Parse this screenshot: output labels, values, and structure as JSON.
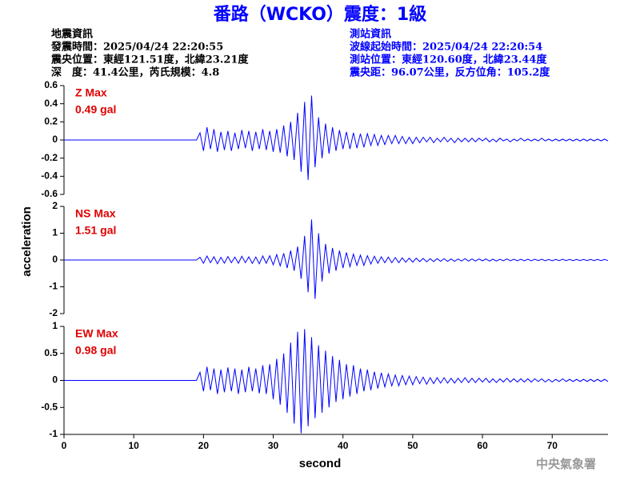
{
  "header": {
    "title": "番路（WCKO）震度：1級",
    "left": [
      "地震資訊",
      "發震時間：2025/04/24 22:20:55",
      "震央位置：東經121.51度，北緯23.21度",
      "深　度：41.4公里，芮氏規模：4.8"
    ],
    "right": [
      "測站資訊",
      "波線起始時間：2025/04/24 22:20:54",
      "測站位置：東經120.60度，北緯23.44度",
      "震央距：96.07公里，反方位角：105.2度"
    ]
  },
  "ylabel": "acceleration",
  "xlabel": "second",
  "footer": "中央氣象署",
  "chart_data": [
    {
      "type": "line",
      "annotation": "Z Max",
      "max_label": "0.49 gal",
      "color": "#0000ff",
      "xlim": [
        0,
        78
      ],
      "ylim": [
        -0.6,
        0.6
      ],
      "yticks": [
        -0.6,
        -0.4,
        -0.2,
        0,
        0.2,
        0.4,
        0.6
      ],
      "x": [
        0,
        19,
        19.5,
        20,
        20.5,
        21,
        21.5,
        22,
        22.5,
        23,
        23.5,
        24,
        24.5,
        25,
        25.5,
        26,
        26.5,
        27,
        27.5,
        28,
        28.5,
        29,
        29.5,
        30,
        30.5,
        31,
        31.5,
        32,
        32.5,
        33,
        33.5,
        34,
        34.5,
        35,
        35.5,
        36,
        36.5,
        37,
        37.5,
        38,
        38.5,
        39,
        39.5,
        40,
        40.5,
        41,
        41.5,
        42,
        42.5,
        43,
        43.5,
        44,
        44.5,
        45,
        45.5,
        46,
        46.5,
        47,
        47.5,
        48,
        48.5,
        49,
        49.5,
        50,
        50.5,
        51,
        51.5,
        52,
        52.5,
        53,
        53.5,
        54,
        54.5,
        55,
        55.5,
        56,
        56.5,
        57,
        57.5,
        58,
        58.5,
        59,
        59.5,
        60,
        60.5,
        61,
        61.5,
        62,
        62.5,
        63,
        63.5,
        64,
        64.5,
        65,
        65.5,
        66,
        66.5,
        67,
        67.5,
        68,
        68.5,
        69,
        69.5,
        70,
        70.5,
        71,
        71.5,
        72,
        72.5,
        73,
        73.5,
        74,
        74.5,
        75,
        75.5,
        76,
        76.5,
        77,
        77.5,
        78
      ],
      "values": [
        0,
        0,
        0.08,
        -0.12,
        0.14,
        -0.1,
        0.12,
        -0.13,
        0.09,
        -0.11,
        0.1,
        -0.12,
        0.08,
        -0.1,
        0.11,
        -0.09,
        0.1,
        -0.12,
        0.09,
        -0.1,
        0.12,
        -0.11,
        0.1,
        -0.13,
        0.12,
        -0.14,
        0.16,
        -0.18,
        0.2,
        -0.22,
        0.3,
        -0.35,
        0.42,
        -0.44,
        0.49,
        -0.3,
        0.25,
        -0.2,
        0.18,
        -0.15,
        0.14,
        -0.12,
        0.11,
        -0.1,
        0.09,
        -0.1,
        0.08,
        -0.09,
        0.07,
        -0.08,
        0.07,
        -0.06,
        0.06,
        -0.06,
        0.05,
        -0.05,
        0.05,
        -0.04,
        0.05,
        -0.04,
        0.04,
        -0.04,
        0.03,
        -0.04,
        0.03,
        -0.03,
        0.03,
        -0.02,
        0.03,
        -0.03,
        0.02,
        -0.02,
        0.03,
        -0.02,
        0.02,
        -0.03,
        0.02,
        -0.02,
        0.02,
        -0.02,
        0.02,
        -0.02,
        0.02,
        -0.01,
        0.02,
        -0.02,
        0.01,
        -0.02,
        0.02,
        -0.01,
        0.01,
        -0.02,
        0.01,
        -0.01,
        0.02,
        -0.01,
        0.01,
        -0.01,
        0.01,
        -0.01,
        0.02,
        -0.01,
        0.01,
        -0.01,
        0.01,
        -0.01,
        0.01,
        -0.01,
        0.01,
        -0.01,
        0.01,
        -0.01,
        0.01,
        -0.01,
        0.01,
        -0.01,
        0.01,
        -0.01,
        0.01,
        -0.01
      ]
    },
    {
      "type": "line",
      "annotation": "NS Max",
      "max_label": "1.51 gal",
      "color": "#0000ff",
      "xlim": [
        0,
        78
      ],
      "ylim": [
        -2,
        2
      ],
      "yticks": [
        -2,
        -1,
        0,
        1,
        2
      ],
      "x": [
        0,
        19,
        19.5,
        20,
        20.5,
        21,
        21.5,
        22,
        22.5,
        23,
        23.5,
        24,
        24.5,
        25,
        25.5,
        26,
        26.5,
        27,
        27.5,
        28,
        28.5,
        29,
        29.5,
        30,
        30.5,
        31,
        31.5,
        32,
        32.5,
        33,
        33.5,
        34,
        34.5,
        35,
        35.5,
        36,
        36.5,
        37,
        37.5,
        38,
        38.5,
        39,
        39.5,
        40,
        40.5,
        41,
        41.5,
        42,
        42.5,
        43,
        43.5,
        44,
        44.5,
        45,
        45.5,
        46,
        46.5,
        47,
        47.5,
        48,
        48.5,
        49,
        49.5,
        50,
        50.5,
        51,
        51.5,
        52,
        52.5,
        53,
        53.5,
        54,
        54.5,
        55,
        55.5,
        56,
        56.5,
        57,
        57.5,
        58,
        58.5,
        59,
        59.5,
        60,
        60.5,
        61,
        61.5,
        62,
        62.5,
        63,
        63.5,
        64,
        64.5,
        65,
        65.5,
        66,
        66.5,
        67,
        67.5,
        68,
        68.5,
        69,
        69.5,
        70,
        70.5,
        71,
        71.5,
        72,
        72.5,
        73,
        73.5,
        74,
        74.5,
        75,
        75.5,
        76,
        76.5,
        77,
        77.5,
        78
      ],
      "values": [
        0,
        0,
        0.1,
        -0.12,
        0.15,
        -0.1,
        0.12,
        -0.14,
        0.1,
        -0.12,
        0.13,
        -0.1,
        0.11,
        -0.12,
        0.14,
        -0.1,
        0.12,
        -0.13,
        0.11,
        -0.14,
        0.15,
        -0.12,
        0.16,
        -0.18,
        0.2,
        -0.22,
        0.25,
        -0.3,
        0.35,
        -0.4,
        0.5,
        -0.7,
        0.9,
        -1.2,
        1.51,
        -1.45,
        1.0,
        -0.8,
        0.6,
        -0.5,
        0.45,
        -0.4,
        0.35,
        -0.3,
        0.28,
        -0.25,
        0.22,
        -0.2,
        0.18,
        -0.2,
        0.16,
        -0.15,
        0.14,
        -0.12,
        0.12,
        -0.1,
        0.11,
        -0.1,
        0.09,
        -0.1,
        0.08,
        -0.08,
        0.07,
        -0.08,
        0.07,
        -0.06,
        0.06,
        -0.07,
        0.05,
        -0.06,
        0.05,
        -0.05,
        0.05,
        -0.05,
        0.04,
        -0.05,
        0.04,
        -0.04,
        0.05,
        -0.04,
        0.04,
        -0.04,
        0.04,
        -0.03,
        0.04,
        -0.04,
        0.03,
        -0.04,
        0.03,
        -0.03,
        0.04,
        -0.03,
        0.03,
        -0.03,
        0.03,
        -0.03,
        0.03,
        -0.03,
        0.03,
        -0.02,
        0.03,
        -0.03,
        0.02,
        -0.03,
        0.02,
        -0.02,
        0.03,
        -0.02,
        0.02,
        -0.02,
        0.02,
        -0.02,
        0.02,
        -0.02,
        0.02,
        -0.02,
        0.02,
        -0.02,
        0.02,
        -0.02
      ]
    },
    {
      "type": "line",
      "annotation": "EW Max",
      "max_label": "0.98 gal",
      "color": "#0000ff",
      "xlim": [
        0,
        78
      ],
      "ylim": [
        -1,
        1
      ],
      "yticks": [
        -1,
        -0.5,
        0,
        0.5,
        1
      ],
      "xticks": [
        0,
        10,
        20,
        30,
        40,
        50,
        60,
        70
      ],
      "x": [
        0,
        19,
        19.5,
        20,
        20.5,
        21,
        21.5,
        22,
        22.5,
        23,
        23.5,
        24,
        24.5,
        25,
        25.5,
        26,
        26.5,
        27,
        27.5,
        28,
        28.5,
        29,
        29.5,
        30,
        30.5,
        31,
        31.5,
        32,
        32.5,
        33,
        33.5,
        34,
        34.5,
        35,
        35.5,
        36,
        36.5,
        37,
        37.5,
        38,
        38.5,
        39,
        39.5,
        40,
        40.5,
        41,
        41.5,
        42,
        42.5,
        43,
        43.5,
        44,
        44.5,
        45,
        45.5,
        46,
        46.5,
        47,
        47.5,
        48,
        48.5,
        49,
        49.5,
        50,
        50.5,
        51,
        51.5,
        52,
        52.5,
        53,
        53.5,
        54,
        54.5,
        55,
        55.5,
        56,
        56.5,
        57,
        57.5,
        58,
        58.5,
        59,
        59.5,
        60,
        60.5,
        61,
        61.5,
        62,
        62.5,
        63,
        63.5,
        64,
        64.5,
        65,
        65.5,
        66,
        66.5,
        67,
        67.5,
        68,
        68.5,
        69,
        69.5,
        70,
        70.5,
        71,
        71.5,
        72,
        72.5,
        73,
        73.5,
        74,
        74.5,
        75,
        75.5,
        76,
        76.5,
        77,
        77.5,
        78
      ],
      "values": [
        0,
        0,
        0.15,
        -0.2,
        0.25,
        -0.18,
        0.22,
        -0.25,
        0.2,
        -0.22,
        0.24,
        -0.2,
        0.22,
        -0.25,
        0.2,
        -0.22,
        0.25,
        -0.2,
        0.22,
        -0.24,
        0.28,
        -0.25,
        0.3,
        -0.35,
        0.4,
        -0.45,
        0.5,
        -0.6,
        0.7,
        -0.8,
        0.9,
        -0.98,
        0.95,
        -0.85,
        0.8,
        -0.7,
        0.65,
        -0.6,
        0.55,
        -0.5,
        0.45,
        -0.4,
        0.38,
        -0.35,
        0.3,
        -0.3,
        0.28,
        -0.25,
        0.22,
        -0.2,
        0.2,
        -0.18,
        0.16,
        -0.15,
        0.14,
        -0.12,
        0.12,
        -0.1,
        0.1,
        -0.1,
        0.09,
        -0.08,
        0.08,
        -0.08,
        0.07,
        -0.06,
        0.06,
        -0.07,
        0.05,
        -0.06,
        0.05,
        -0.05,
        0.05,
        -0.05,
        0.04,
        -0.05,
        0.04,
        -0.04,
        0.05,
        -0.04,
        0.04,
        -0.04,
        0.04,
        -0.03,
        0.04,
        -0.04,
        0.03,
        -0.04,
        0.03,
        -0.03,
        0.04,
        -0.03,
        0.03,
        -0.03,
        0.03,
        -0.03,
        0.03,
        -0.03,
        0.03,
        -0.02,
        0.03,
        -0.03,
        0.02,
        -0.03,
        0.02,
        -0.02,
        0.03,
        -0.02,
        0.02,
        -0.02,
        0.02,
        -0.02,
        0.02,
        -0.02,
        0.02,
        -0.02,
        0.02,
        -0.02,
        0.02,
        -0.02
      ]
    }
  ]
}
